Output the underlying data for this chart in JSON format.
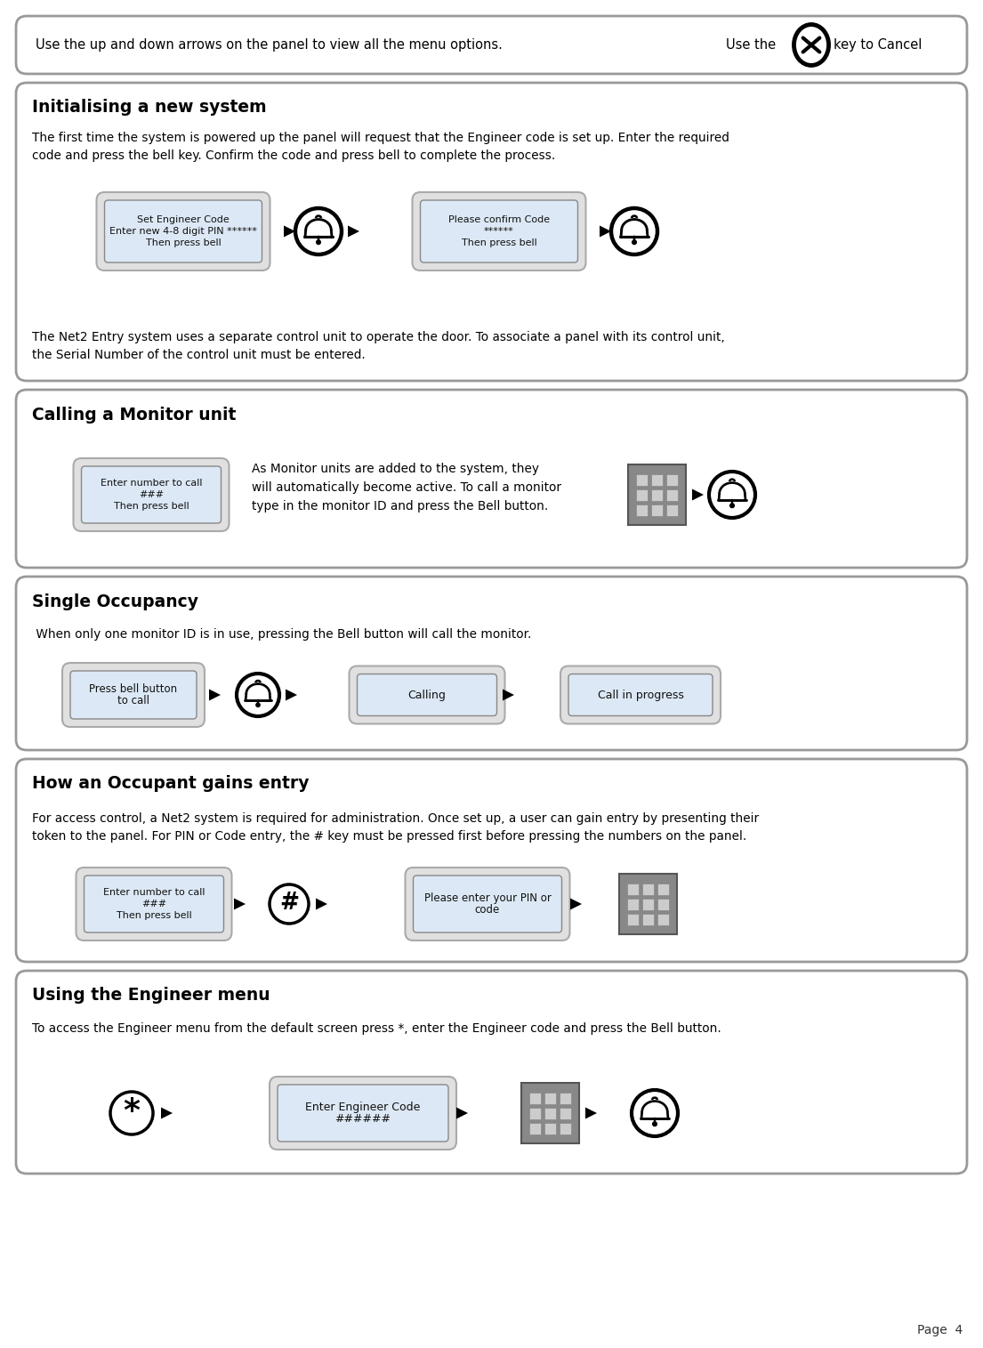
{
  "bg_color": "#ffffff",
  "text_color": "#000000",
  "screen_bg": "#dce8f5",
  "header_text_left": "Use the up and down arrows on the panel to view all the menu options.",
  "header_text_right": "Use the",
  "header_text_right2": "key to Cancel",
  "sec1_title": "Initialising a new system",
  "sec1_para": "The first time the system is powered up the panel will request that the Engineer code is set up. Enter the required\ncode and press the bell key. Confirm the code and press bell to complete the process.",
  "sec1_screen1_lines": [
    "Set Engineer Code",
    "Enter new 4-8 digit PIN ******",
    "Then press bell"
  ],
  "sec1_screen2_lines": [
    "Please confirm Code",
    "******",
    "Then press bell"
  ],
  "sec1_para2": "The Net2 Entry system uses a separate control unit to operate the door. To associate a panel with its control unit,\nthe Serial Number of the control unit must be entered.",
  "sec2_title": "Calling a Monitor unit",
  "sec2_screen_lines": [
    "Enter number to call",
    "###",
    "Then press bell"
  ],
  "sec2_text": "As Monitor units are added to the system, they\nwill automatically become active. To call a monitor\ntype in the monitor ID and press the Bell button.",
  "sec3_title": "Single Occupancy",
  "sec3_para": " When only one monitor ID is in use, pressing the Bell button will call the monitor.",
  "sec3_screen1_lines": [
    "Press bell button",
    "to call"
  ],
  "sec3_screen2_lines": [
    "Calling"
  ],
  "sec3_screen3_lines": [
    "Call in progress"
  ],
  "sec4_title": "How an Occupant gains entry",
  "sec4_para": "For access control, a Net2 system is required for administration. Once set up, a user can gain entry by presenting their\ntoken to the panel. For PIN or Code entry, the # key must be pressed first before pressing the numbers on the panel.",
  "sec4_screen1_lines": [
    "Enter number to call",
    "###",
    "Then press bell"
  ],
  "sec4_screen2_lines": [
    "Please enter your PIN or",
    "code"
  ],
  "sec5_title": "Using the Engineer menu",
  "sec5_para": "To access the Engineer menu from the default screen press *, enter the Engineer code and press the Bell button.",
  "sec5_screen_lines": [
    "Enter Engineer Code",
    "######"
  ],
  "page_label": "Page  4"
}
